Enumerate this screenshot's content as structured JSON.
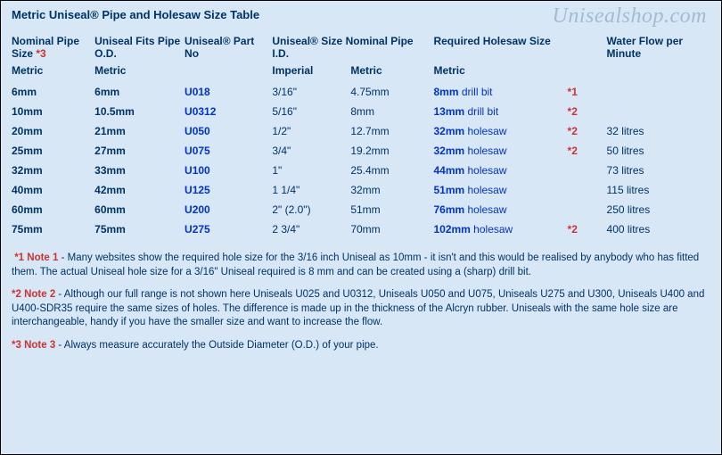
{
  "colors": {
    "background": "#d7e7f5",
    "text": "#003366",
    "link": "#0033cc",
    "red": "#cc3333",
    "watermark": "#7a97b8"
  },
  "title": "Metric Uniseal® Pipe and Holesaw Size Table",
  "watermark": "Unisealshop.com",
  "headers": {
    "col1": "Nominal Pipe Size",
    "col1_ref": "*3",
    "col2": "Uniseal Fits Pipe O.D.",
    "col3": "Uniseal® Part No",
    "col4": "Uniseal® Size Nominal Pipe I.D.",
    "col6": "Required Holesaw Size",
    "col8": "Water Flow per Minute",
    "sub1": "Metric",
    "sub2": "Metric",
    "sub4": "Imperial",
    "sub5": "Metric",
    "sub6": "Metric"
  },
  "rows": [
    {
      "size": "6mm",
      "od": "6mm",
      "part": "U018",
      "imp": "3/16\"",
      "met": "4.75mm",
      "hs_size": "8mm",
      "hs_tool": "drill bit",
      "ref": "*1",
      "flow": ""
    },
    {
      "size": "10mm",
      "od": "10.5mm",
      "part": "U0312",
      "imp": "5/16\"",
      "met": "8mm",
      "hs_size": "13mm",
      "hs_tool": "drill bit",
      "ref": "*2",
      "flow": ""
    },
    {
      "size": "20mm",
      "od": "21mm",
      "part": "U050",
      "imp": "1/2\"",
      "met": "12.7mm",
      "hs_size": "32mm",
      "hs_tool": "holesaw",
      "ref": "*2",
      "flow": "32 litres"
    },
    {
      "size": "25mm",
      "od": "27mm",
      "part": "U075",
      "imp": "3/4\"",
      "met": "19.2mm",
      "hs_size": "32mm",
      "hs_tool": "holesaw",
      "ref": "*2",
      "flow": "50 litres"
    },
    {
      "size": "32mm",
      "od": "33mm",
      "part": "U100",
      "imp": "1\"",
      "met": "25.4mm",
      "hs_size": "44mm",
      "hs_tool": "holesaw",
      "ref": "",
      "flow": "73 litres"
    },
    {
      "size": "40mm",
      "od": "42mm",
      "part": "U125",
      "imp": "1 1/4\"",
      "met": "32mm",
      "hs_size": "51mm",
      "hs_tool": "holesaw",
      "ref": "",
      "flow": "115 litres"
    },
    {
      "size": "60mm",
      "od": "60mm",
      "part": "U200",
      "imp": "2\" (2.0\")",
      "met": "51mm",
      "hs_size": "76mm",
      "hs_tool": "holesaw",
      "ref": "",
      "flow": "250 litres"
    },
    {
      "size": "75mm",
      "od": "75mm",
      "part": "U275",
      "imp": "2 3/4\"",
      "met": "70mm",
      "hs_size": "102mm",
      "hs_tool": "holesaw",
      "ref": "*2",
      "flow": "400 litres"
    }
  ],
  "notes": {
    "n1_label": "*1 Note 1",
    "n1_text": " - Many websites show the required hole size for the 3/16 inch Uniseal as 10mm - it isn't and this would be realised by anybody who has fitted them. The actual Uniseal hole size for a 3/16\" Uniseal required is 8 mm and can be created using a (sharp) drill bit.",
    "n2_label": "*2 Note 2",
    "n2_text": " - Although our full range is not shown here Uniseals U025 and U0312, Uniseals U050 and U075, Uniseals U275 and U300, Uniseals U400 and U400-SDR35 require the same sizes of holes. The difference is made up in the thickness of the Alcryn rubber. Uniseals with the same hole size are interchangeable, handy if you have the smaller size and want to increase the flow.",
    "n3_label": "*3 Note 3",
    "n3_text": " - Always measure accurately the Outside Diameter (O.D.) of your pipe."
  }
}
